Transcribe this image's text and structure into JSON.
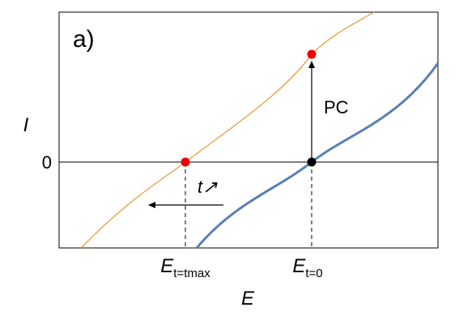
{
  "panel_label": "a)",
  "y_axis": {
    "label": "I",
    "tick": "0"
  },
  "x_axis": {
    "label": "E",
    "ticks": [
      {
        "base": "E",
        "sub": "t=tmax"
      },
      {
        "base": "E",
        "sub": "t=0"
      }
    ]
  },
  "annotations": {
    "arrow_up": "PC",
    "arrow_left": "t↗"
  }
}
